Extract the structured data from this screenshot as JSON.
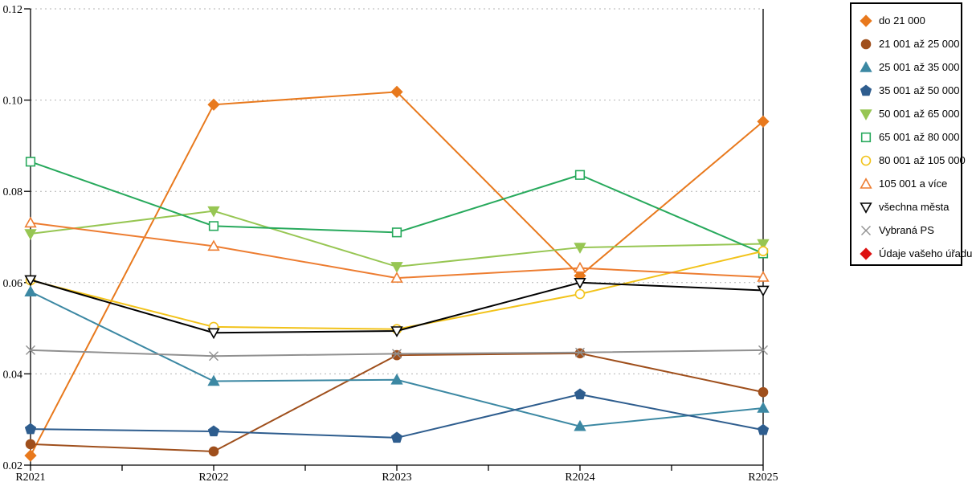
{
  "chart_data": {
    "type": "line",
    "title": "",
    "xlabel": "",
    "ylabel": "",
    "x_categories": [
      "R2021",
      "R2022",
      "R2023",
      "R2024",
      "R2025"
    ],
    "ylim": [
      0.02,
      0.12
    ],
    "y_ticks": [
      0.02,
      0.04,
      0.06,
      0.08,
      0.1,
      0.12
    ],
    "y_tick_labels": [
      "0.02",
      "0.04",
      "0.06",
      "0.08",
      "0.10",
      "0.12"
    ],
    "grid": "horizontal-dotted",
    "grid_color": "#b3b3b3",
    "axis_color": "#000000",
    "legend_position": "top-right",
    "series": [
      {
        "name": "do 21 000",
        "color": "#e8791d",
        "marker": "diamond",
        "fill": "solid",
        "values": [
          0.0221,
          0.099,
          0.1018,
          0.0615,
          0.0953
        ]
      },
      {
        "name": "21 001 až 25 000",
        "color": "#9f4f1c",
        "marker": "circle",
        "fill": "solid",
        "values": [
          0.0246,
          0.023,
          0.0441,
          0.0445,
          0.036
        ]
      },
      {
        "name": "25 001 až 35 000",
        "color": "#3c88a3",
        "marker": "triangle-up",
        "fill": "solid",
        "values": [
          0.058,
          0.0384,
          0.0387,
          0.0285,
          0.0325
        ]
      },
      {
        "name": "35 001 až 50 000",
        "color": "#2e5d8e",
        "marker": "pentagon",
        "fill": "solid",
        "values": [
          0.0279,
          0.0274,
          0.026,
          0.0355,
          0.0277
        ]
      },
      {
        "name": "50 001 až 65 000",
        "color": "#97c653",
        "marker": "triangle-down",
        "fill": "solid",
        "values": [
          0.0707,
          0.0757,
          0.0635,
          0.0677,
          0.0685
        ]
      },
      {
        "name": "65 001 až 80 000",
        "color": "#27a95c",
        "marker": "square",
        "fill": "hollow",
        "values": [
          0.0865,
          0.0724,
          0.071,
          0.0836,
          0.0664
        ]
      },
      {
        "name": "80 001 až 105 000",
        "color": "#f2c31b",
        "marker": "circle",
        "fill": "hollow",
        "values": [
          0.0605,
          0.0503,
          0.0498,
          0.0575,
          0.0669
        ]
      },
      {
        "name": "105 001 a více",
        "color": "#ed7d31",
        "marker": "triangle-up",
        "fill": "hollow",
        "values": [
          0.0731,
          0.068,
          0.061,
          0.0632,
          0.0612
        ]
      },
      {
        "name": "všechna města",
        "color": "#000000",
        "marker": "triangle-down",
        "fill": "hollow",
        "values": [
          0.0606,
          0.049,
          0.0494,
          0.06,
          0.0583
        ]
      },
      {
        "name": "Vybraná PS",
        "color": "#909090",
        "marker": "x",
        "fill": "line",
        "values": [
          0.0452,
          0.0439,
          0.0444,
          0.0447,
          0.0452
        ]
      },
      {
        "name": "Údaje vašeho úřadu",
        "color": "#dd1111",
        "marker": "diamond",
        "fill": "solid",
        "values": []
      }
    ]
  }
}
